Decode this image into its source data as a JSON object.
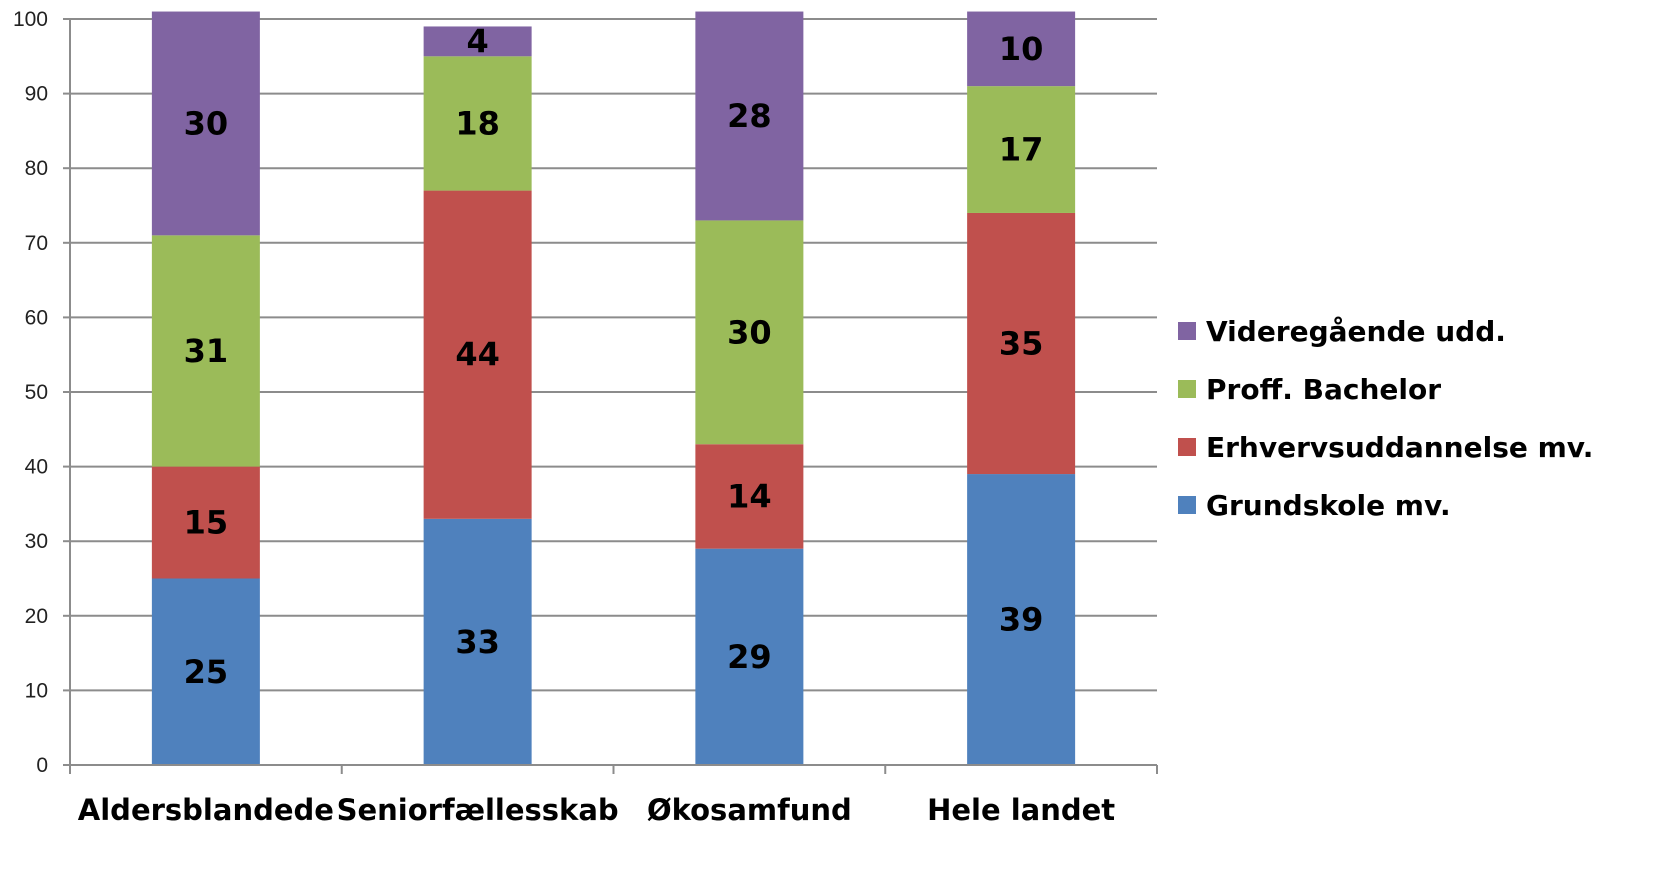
{
  "chart_data": {
    "type": "bar",
    "stacked": true,
    "categories": [
      "Aldersblandede",
      "Seniorfællesskab",
      "Økosamfund",
      "Hele landet"
    ],
    "series": [
      {
        "name": "Grundskole mv.",
        "values": [
          25,
          33,
          29,
          39
        ],
        "color": "#4F81BD"
      },
      {
        "name": "Erhvervsuddannelse mv.",
        "values": [
          15,
          44,
          14,
          35
        ],
        "color": "#C0504D"
      },
      {
        "name": "Proff. Bachelor",
        "values": [
          31,
          18,
          30,
          17
        ],
        "color": "#9BBB59"
      },
      {
        "name": "Videregående udd.",
        "values": [
          30,
          4,
          28,
          10
        ],
        "color": "#8064A2"
      }
    ],
    "title": "",
    "xlabel": "",
    "ylabel": "",
    "ylim": [
      0,
      100
    ],
    "yticks": [
      0,
      10,
      20,
      30,
      40,
      50,
      60,
      70,
      80,
      90,
      100
    ],
    "grid": true,
    "legend_position": "right",
    "legend_order": [
      "Videregående udd.",
      "Proff. Bachelor",
      "Erhvervsuddannelse mv.",
      "Grundskole mv."
    ]
  }
}
